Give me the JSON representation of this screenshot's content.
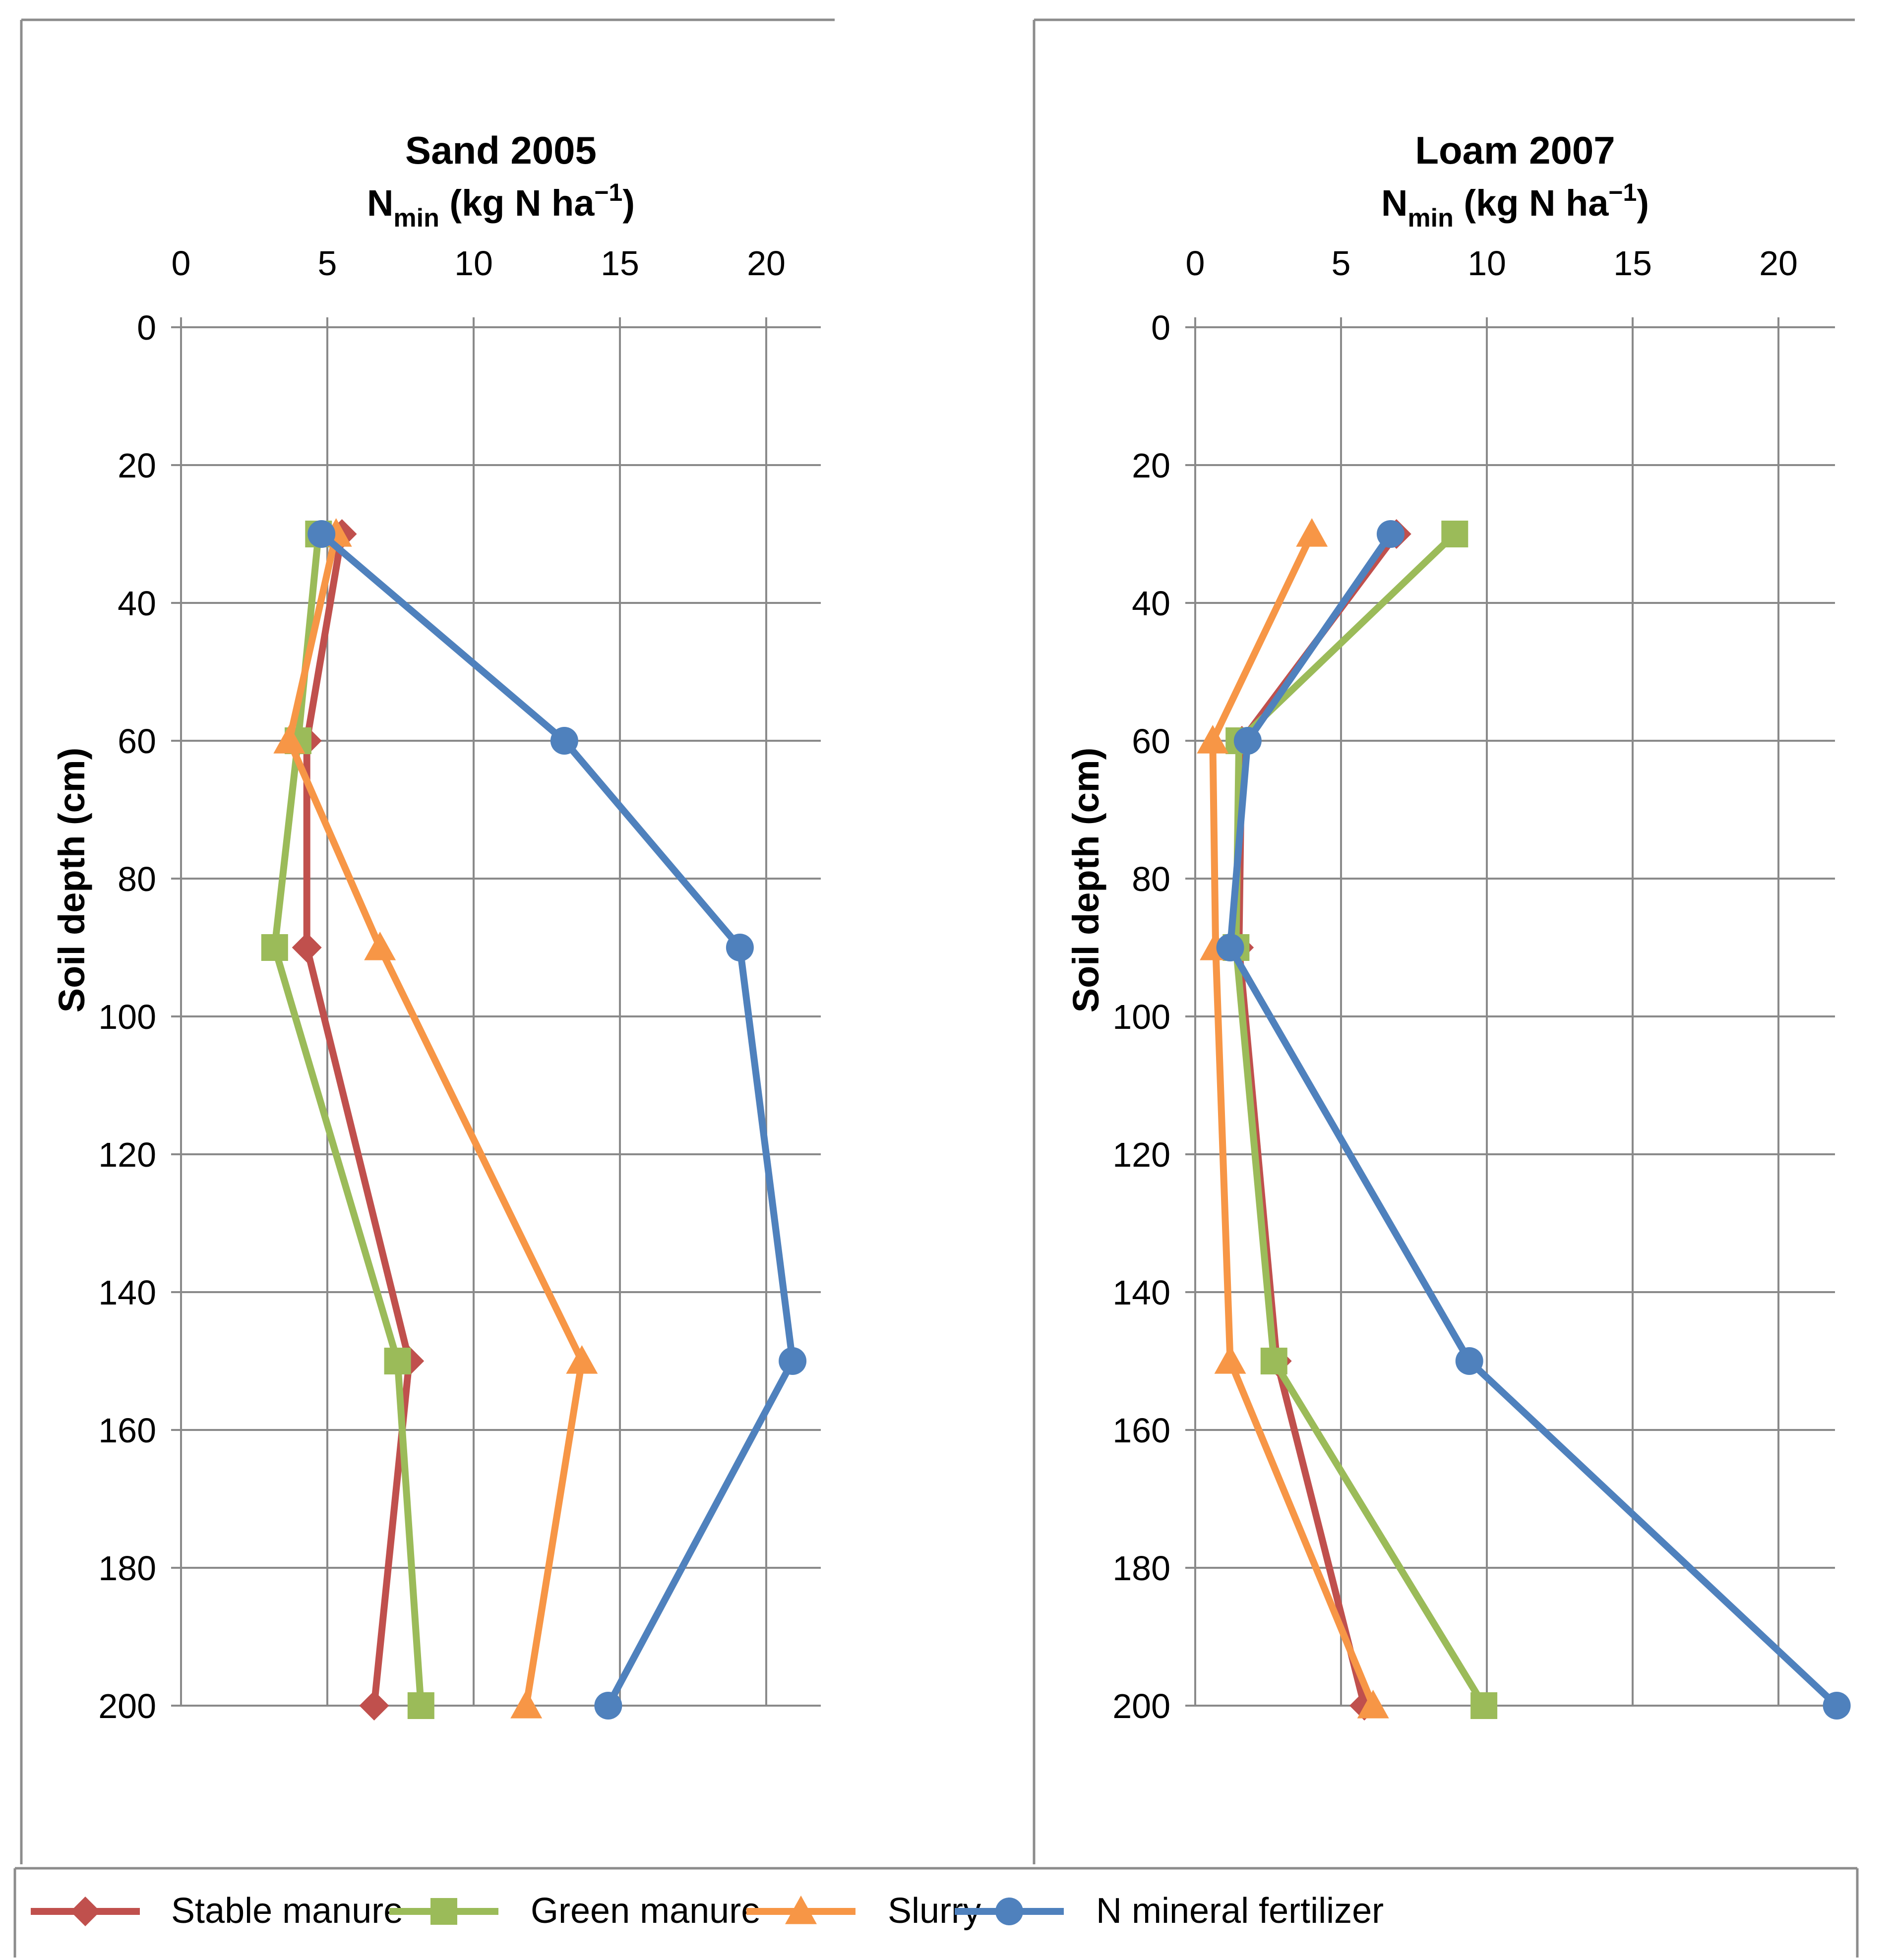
{
  "chart_data": [
    {
      "type": "line",
      "title": "Sand 2005",
      "xlabel": {
        "base": "N",
        "sub": "min",
        "rest": " (kg N ha",
        "sup": "−1",
        "close": ")"
      },
      "ylabel": "Soil depth (cm)",
      "xlim": [
        0,
        22
      ],
      "ylim": [
        0,
        200
      ],
      "y_reversed": true,
      "x_ticks": [
        "0",
        "5",
        "10",
        "15",
        "20"
      ],
      "y_ticks": [
        "0",
        "20",
        "40",
        "60",
        "80",
        "100",
        "120",
        "140",
        "160",
        "180",
        "200"
      ],
      "grid": true,
      "series": [
        {
          "name": "Stable manure",
          "depth": [
            30,
            60,
            90,
            150,
            200
          ],
          "values": [
            5.5,
            4.3,
            4.3,
            7.8,
            6.6
          ]
        },
        {
          "name": "Green manure",
          "depth": [
            30,
            60,
            90,
            150,
            200
          ],
          "values": [
            4.7,
            4.0,
            3.2,
            7.4,
            8.2
          ]
        },
        {
          "name": "Slurry",
          "depth": [
            30,
            60,
            90,
            150,
            200
          ],
          "values": [
            5.3,
            3.7,
            6.8,
            13.7,
            11.8
          ]
        },
        {
          "name": "N mineral fertilizer",
          "depth": [
            30,
            60,
            90,
            150,
            200
          ],
          "values": [
            4.8,
            13.1,
            19.1,
            20.9,
            14.6
          ]
        }
      ]
    },
    {
      "type": "line",
      "title": "Loam 2007",
      "xlabel": {
        "base": "N",
        "sub": "min",
        "rest": " (kg N ha",
        "sup": "−1",
        "close": ")"
      },
      "ylabel": "Soil depth (cm)",
      "xlim": [
        0,
        22
      ],
      "ylim": [
        0,
        200
      ],
      "y_reversed": true,
      "x_ticks": [
        "0",
        "5",
        "10",
        "15",
        "20"
      ],
      "y_ticks": [
        "0",
        "20",
        "40",
        "60",
        "80",
        "100",
        "120",
        "140",
        "160",
        "180",
        "200"
      ],
      "grid": true,
      "series": [
        {
          "name": "Stable manure",
          "depth": [
            30,
            60,
            90,
            150,
            200
          ],
          "values": [
            6.9,
            1.6,
            1.5,
            2.8,
            5.8
          ]
        },
        {
          "name": "Green manure",
          "depth": [
            30,
            60,
            90,
            150,
            200
          ],
          "values": [
            8.9,
            1.5,
            1.4,
            2.7,
            9.9
          ]
        },
        {
          "name": "Slurry",
          "depth": [
            30,
            60,
            90,
            150,
            200
          ],
          "values": [
            4.0,
            0.6,
            0.7,
            1.2,
            6.1
          ]
        },
        {
          "name": "N mineral fertilizer",
          "depth": [
            30,
            60,
            90,
            150,
            200
          ],
          "values": [
            6.7,
            1.8,
            1.2,
            9.4,
            22.0
          ]
        }
      ]
    }
  ],
  "legend": {
    "position": "bottom",
    "items": [
      {
        "name": "Stable manure",
        "color": "#C0504D",
        "marker": "diamond"
      },
      {
        "name": "Green manure",
        "color": "#9BBB59",
        "marker": "square"
      },
      {
        "name": "Slurry",
        "color": "#F79646",
        "marker": "triangle"
      },
      {
        "name": "N mineral fertilizer",
        "color": "#4F81BD",
        "marker": "circle"
      }
    ]
  }
}
